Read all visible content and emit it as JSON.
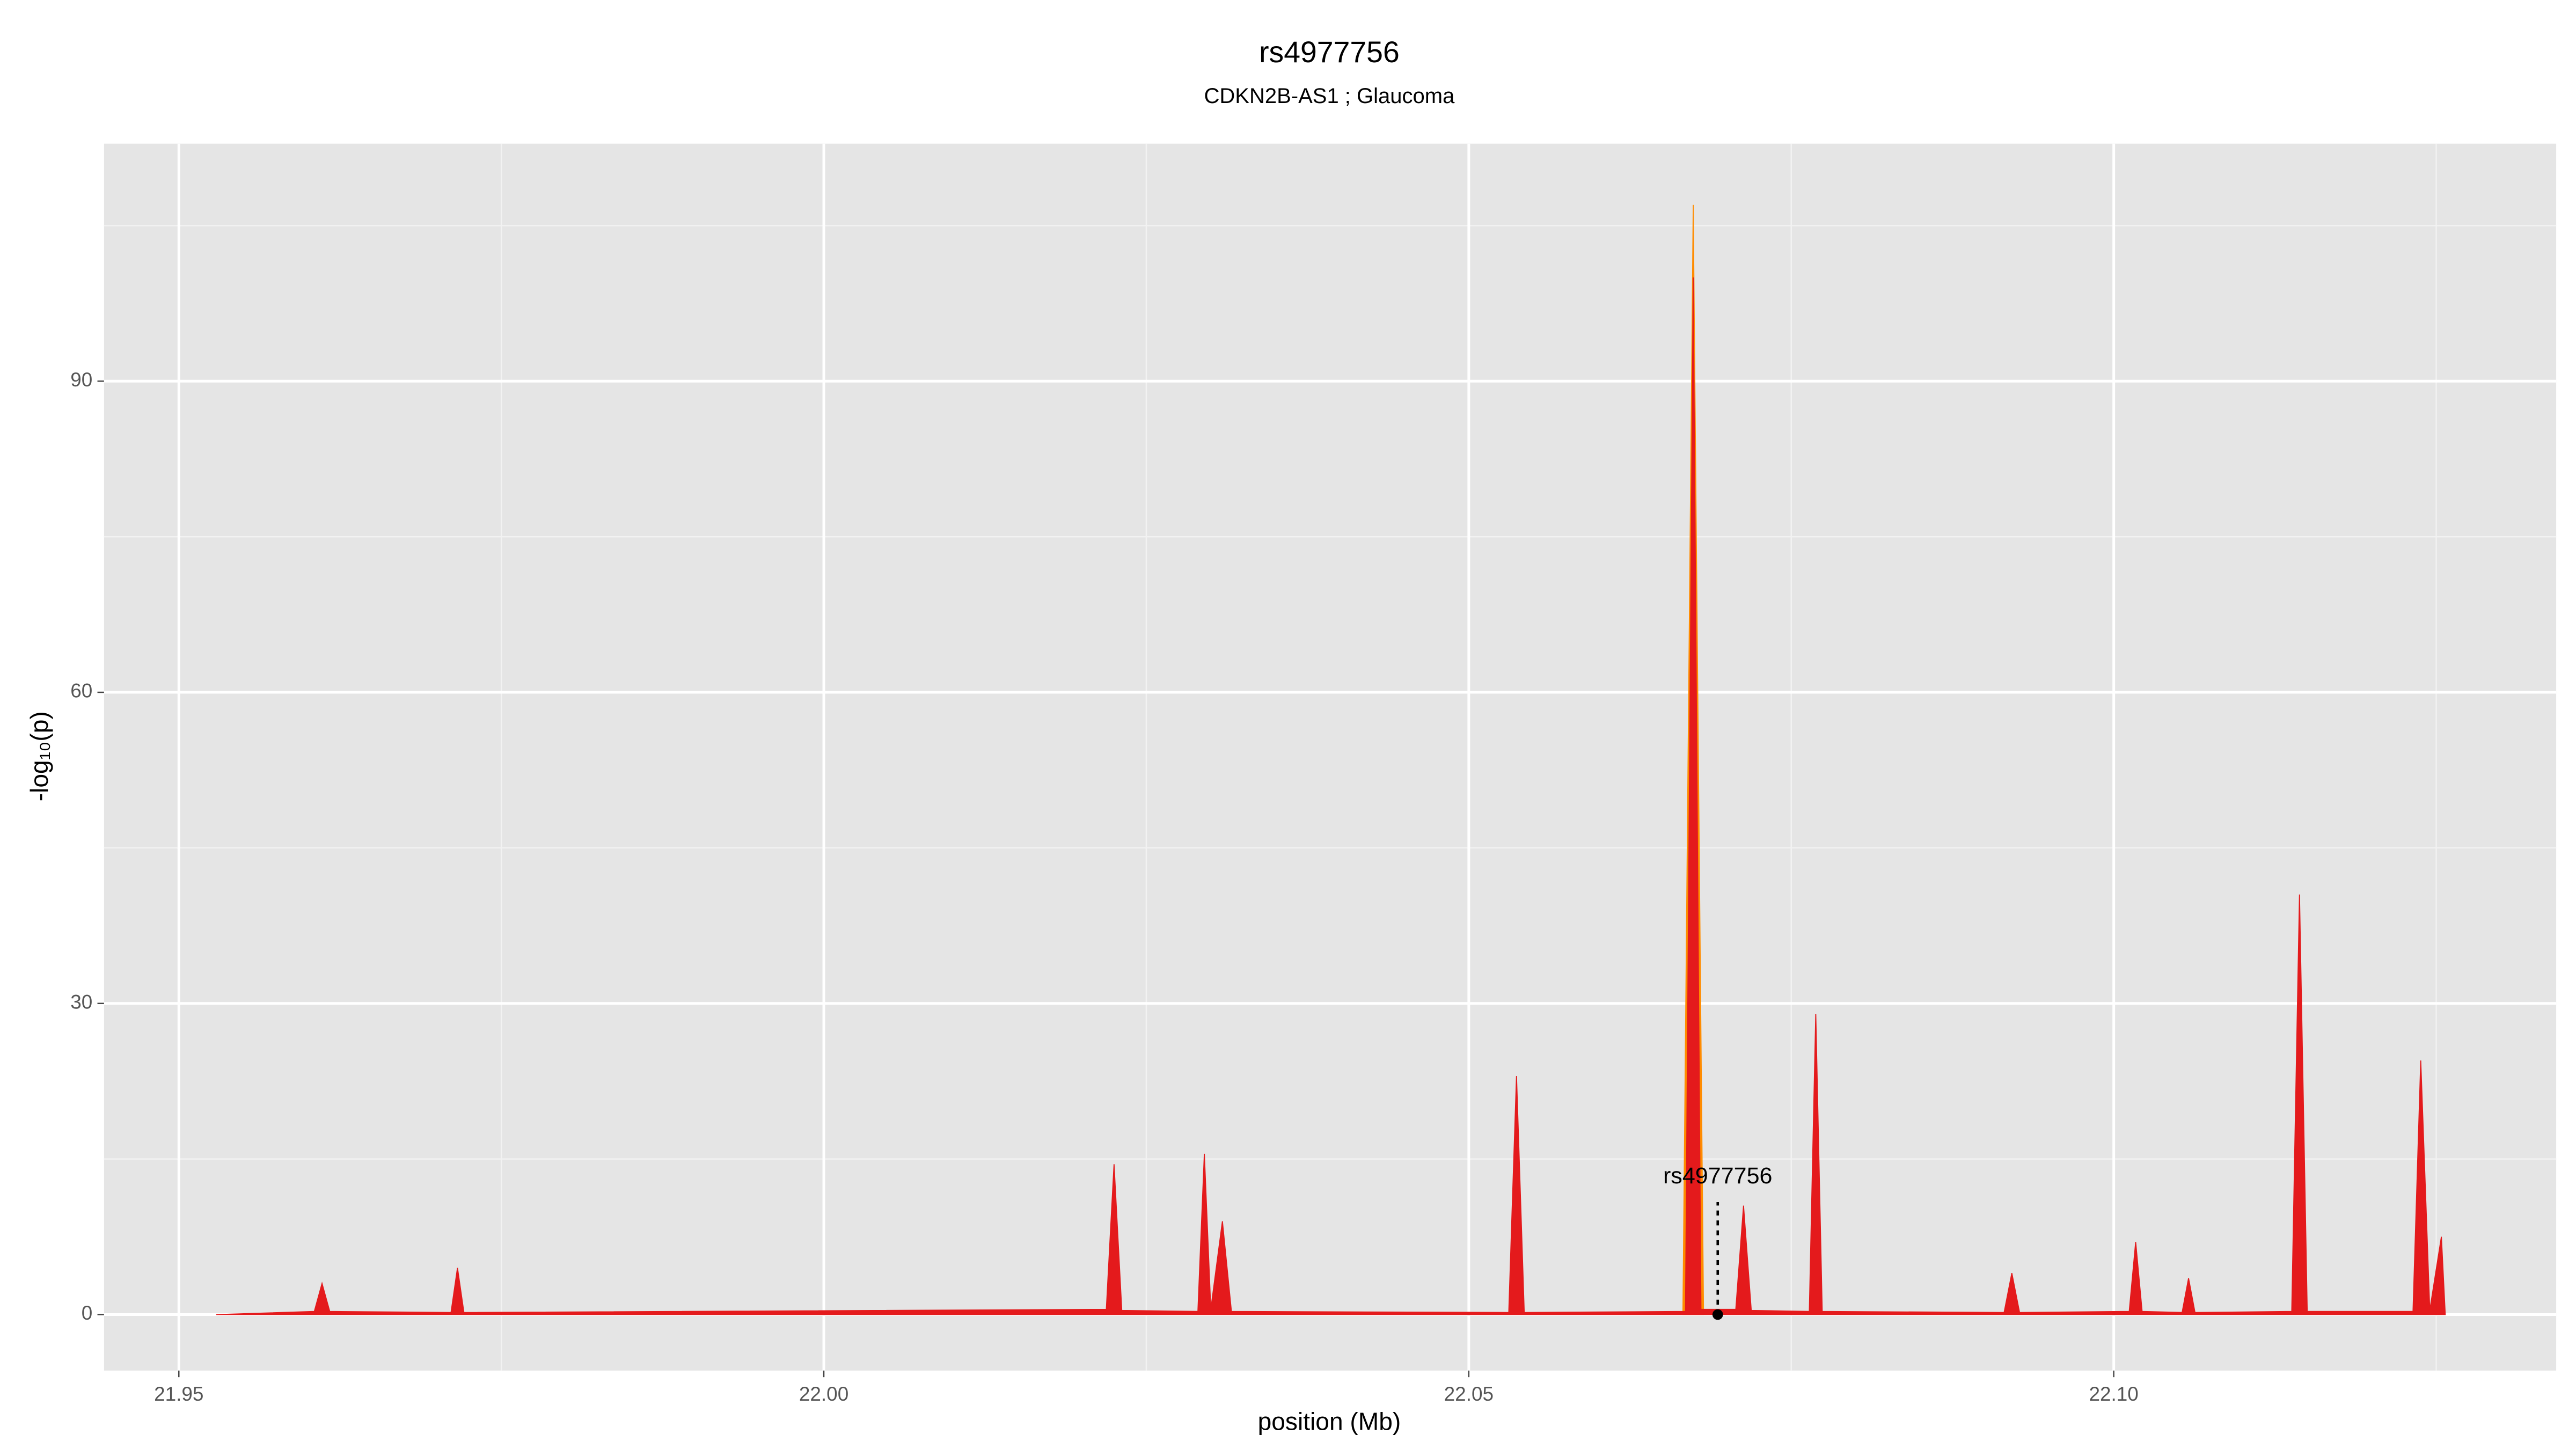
{
  "chart_data": {
    "type": "area",
    "title": "rs4977756",
    "subtitle": "CDKN2B-AS1 ; Glaucoma",
    "x_label": "position (Mb)",
    "y_label": "-log₁₀(p)",
    "xlim": [
      21.9442,
      22.1343
    ],
    "ylim": [
      -5.4,
      112.9
    ],
    "xticks": [
      21.95,
      {
        "value": 22,
        "label": "22.00"
      },
      22.05,
      {
        "value": 22.1,
        "label": "22.10"
      }
    ],
    "yticks": [
      0,
      30,
      60,
      90
    ],
    "grid": true,
    "series": [
      {
        "color": "#ff8c00",
        "x": [
          22.0666,
          22.0674,
          22.0682
        ],
        "values": [
          0,
          107,
          0
        ]
      },
      {
        "color": "#e41a1c",
        "x": [
          21.9529,
          21.9605,
          21.9611,
          21.9617,
          21.9711,
          21.9716,
          21.9721,
          22.0219,
          22.0225,
          22.0231,
          22.029,
          22.0295,
          22.03,
          22.0309,
          22.0316,
          22.0531,
          22.0537,
          22.0543,
          22.0668,
          22.0674,
          22.068,
          22.0707,
          22.0713,
          22.0719,
          22.0764,
          22.0769,
          22.0774,
          22.0915,
          22.0921,
          22.0927,
          22.1012,
          22.1017,
          22.1022,
          22.1053,
          22.1058,
          22.1063,
          22.1138,
          22.1144,
          22.115,
          22.1232,
          22.1238,
          22.1245,
          22.1254,
          22.1257
        ],
        "values": [
          0,
          0.3,
          3,
          0.3,
          0.2,
          4.5,
          0.2,
          0.5,
          14.5,
          0.4,
          0.3,
          15.5,
          0.5,
          9,
          0.3,
          0.2,
          23,
          0.2,
          0.3,
          100,
          0.5,
          0.5,
          10.5,
          0.4,
          0.3,
          29,
          0.3,
          0.2,
          4,
          0.2,
          0.3,
          7,
          0.3,
          0.2,
          3.5,
          0.2,
          0.3,
          40.5,
          0.3,
          0.3,
          24.5,
          0.4,
          7.5,
          0
        ]
      }
    ],
    "annotation": {
      "text": "rs4977756",
      "x": 22.0693,
      "y": 0
    }
  }
}
